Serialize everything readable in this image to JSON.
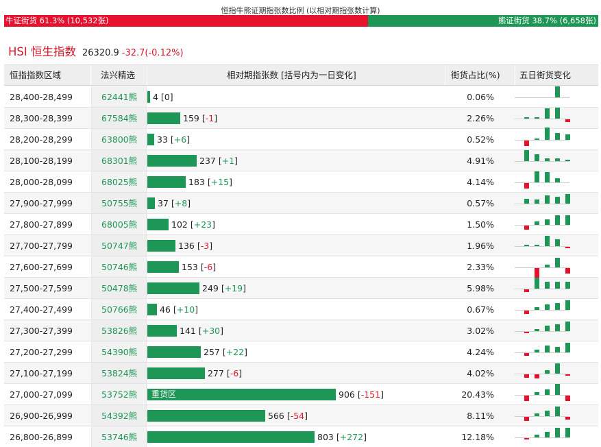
{
  "ratio": {
    "title": "恒指牛熊证期指张数比例 (以相对期指张数计算)",
    "bull_label": "牛证街货 61.3% (10,532张)",
    "bear_label": "熊证街货 38.7% (6,658张)",
    "bull_share": 0.613,
    "bull_color": "#e8112d",
    "bear_color": "#1e9656"
  },
  "index": {
    "name": "HSI 恒生指数",
    "value": "26320.9",
    "change": "-32.7(-0.12%)"
  },
  "table": {
    "headers": {
      "range": "恒指指数区域",
      "code": "法兴精选",
      "contracts": "相对期指张数 [括号内为一日变化]",
      "share": "街货占比(%)",
      "trend": "五日街货变化"
    },
    "max_contracts": 906,
    "heavy_label": "重货区",
    "rows": [
      {
        "range": "28,400-28,499",
        "code": "62441熊",
        "contracts": 4,
        "change": "0",
        "share": "0.06%",
        "trend": [
          0,
          0,
          0,
          16,
          0
        ]
      },
      {
        "range": "28,300-28,399",
        "code": "67584熊",
        "contracts": 159,
        "change": "-1",
        "share": "2.26%",
        "trend": [
          2,
          2,
          15,
          16,
          -4
        ]
      },
      {
        "range": "28,200-28,299",
        "code": "63800熊",
        "contracts": 33,
        "change": "+6",
        "share": "0.52%",
        "trend": [
          -8,
          2,
          18,
          10,
          8
        ]
      },
      {
        "range": "28,100-28,199",
        "code": "68301熊",
        "contracts": 237,
        "change": "+1",
        "share": "4.91%",
        "trend": [
          16,
          10,
          4,
          4,
          2
        ]
      },
      {
        "range": "28,000-28,099",
        "code": "68025熊",
        "contracts": 183,
        "change": "+15",
        "share": "4.14%",
        "trend": [
          -8,
          16,
          15,
          6,
          0
        ]
      },
      {
        "range": "27,900-27,999",
        "code": "50755熊",
        "contracts": 37,
        "change": "+8",
        "share": "0.57%",
        "trend": [
          7,
          6,
          12,
          10,
          14
        ]
      },
      {
        "range": "27,800-27,899",
        "code": "68005熊",
        "contracts": 102,
        "change": "+23",
        "share": "1.50%",
        "trend": [
          -6,
          5,
          8,
          14,
          14
        ]
      },
      {
        "range": "27,700-27,799",
        "code": "50747熊",
        "contracts": 136,
        "change": "-3",
        "share": "1.96%",
        "trend": [
          2,
          2,
          15,
          10,
          -2
        ]
      },
      {
        "range": "27,600-27,699",
        "code": "50746熊",
        "contracts": 153,
        "change": "-6",
        "share": "2.33%",
        "trend": [
          0,
          -16,
          4,
          14,
          -8
        ]
      },
      {
        "range": "27,500-27,599",
        "code": "50478熊",
        "contracts": 249,
        "change": "+19",
        "share": "5.98%",
        "trend": [
          -4,
          16,
          10,
          10,
          10
        ]
      },
      {
        "range": "27,400-27,499",
        "code": "50766熊",
        "contracts": 46,
        "change": "+10",
        "share": "0.67%",
        "trend": [
          -5,
          4,
          8,
          10,
          14
        ]
      },
      {
        "range": "27,300-27,399",
        "code": "53826熊",
        "contracts": 141,
        "change": "+30",
        "share": "3.02%",
        "trend": [
          -2,
          3,
          8,
          10,
          14
        ]
      },
      {
        "range": "27,200-27,299",
        "code": "54390熊",
        "contracts": 257,
        "change": "+22",
        "share": "4.24%",
        "trend": [
          -4,
          4,
          10,
          8,
          14
        ]
      },
      {
        "range": "27,100-27,199",
        "code": "53824熊",
        "contracts": 277,
        "change": "-6",
        "share": "4.02%",
        "trend": [
          -5,
          -6,
          5,
          15,
          -2
        ]
      },
      {
        "range": "27,000-27,099",
        "code": "53752熊",
        "contracts": 906,
        "change": "-151",
        "share": "20.43%",
        "trend": [
          -8,
          4,
          8,
          16,
          -8
        ]
      },
      {
        "range": "26,900-26,999",
        "code": "54392熊",
        "contracts": 566,
        "change": "-54",
        "share": "8.11%",
        "trend": [
          -6,
          4,
          8,
          14,
          -4
        ]
      },
      {
        "range": "26,800-26,899",
        "code": "53746熊",
        "contracts": 803,
        "change": "+272",
        "share": "12.18%",
        "trend": [
          -2,
          4,
          8,
          14,
          14
        ]
      }
    ]
  }
}
